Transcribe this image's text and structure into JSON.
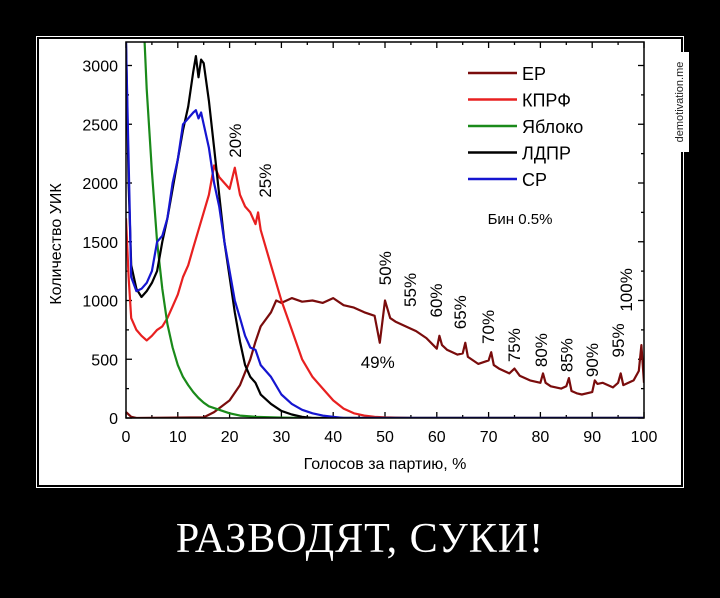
{
  "caption": "РАЗВОДЯТ, СУКИ!",
  "watermark": "demotivation.me",
  "chart_data": {
    "type": "line",
    "title": "",
    "xlabel": "Голосов за партию, %",
    "ylabel": "Количество УИК",
    "xlim": [
      0,
      100
    ],
    "ylim": [
      0,
      3200
    ],
    "xticks": [
      0,
      10,
      20,
      30,
      40,
      50,
      60,
      70,
      80,
      90,
      100
    ],
    "yticks": [
      0,
      500,
      1000,
      1500,
      2000,
      2500,
      3000
    ],
    "grid": false,
    "legend_position": "top-right",
    "bin_note": "Бин 0.5%",
    "series": [
      {
        "name": "ЕР",
        "color": "#7a0c0c",
        "points": [
          [
            0,
            50
          ],
          [
            1,
            10
          ],
          [
            2,
            0
          ],
          [
            15,
            5
          ],
          [
            17,
            50
          ],
          [
            20,
            150
          ],
          [
            22,
            280
          ],
          [
            24,
            500
          ],
          [
            25,
            650
          ],
          [
            26,
            780
          ],
          [
            28,
            900
          ],
          [
            29,
            1000
          ],
          [
            30,
            980
          ],
          [
            32,
            1020
          ],
          [
            34,
            990
          ],
          [
            36,
            1000
          ],
          [
            38,
            980
          ],
          [
            40,
            1020
          ],
          [
            42,
            960
          ],
          [
            44,
            940
          ],
          [
            46,
            900
          ],
          [
            48,
            870
          ],
          [
            49,
            640
          ],
          [
            50,
            1000
          ],
          [
            51,
            850
          ],
          [
            52,
            820
          ],
          [
            54,
            780
          ],
          [
            55,
            760
          ],
          [
            56,
            740
          ],
          [
            58,
            680
          ],
          [
            60,
            590
          ],
          [
            60.5,
            700
          ],
          [
            61,
            620
          ],
          [
            62,
            580
          ],
          [
            64,
            540
          ],
          [
            65,
            550
          ],
          [
            65.5,
            640
          ],
          [
            66,
            520
          ],
          [
            68,
            460
          ],
          [
            70,
            490
          ],
          [
            70.5,
            560
          ],
          [
            71,
            450
          ],
          [
            72,
            420
          ],
          [
            74,
            380
          ],
          [
            75,
            420
          ],
          [
            76,
            360
          ],
          [
            78,
            320
          ],
          [
            80,
            300
          ],
          [
            80.5,
            380
          ],
          [
            81,
            300
          ],
          [
            82,
            270
          ],
          [
            84,
            250
          ],
          [
            85,
            270
          ],
          [
            85.5,
            340
          ],
          [
            86,
            230
          ],
          [
            87,
            210
          ],
          [
            88,
            200
          ],
          [
            90,
            220
          ],
          [
            90.5,
            320
          ],
          [
            91,
            290
          ],
          [
            92,
            300
          ],
          [
            94,
            260
          ],
          [
            95,
            300
          ],
          [
            95.5,
            380
          ],
          [
            96,
            280
          ],
          [
            98,
            320
          ],
          [
            99,
            400
          ],
          [
            99.5,
            620
          ],
          [
            100,
            300
          ]
        ]
      },
      {
        "name": "КПРФ",
        "color": "#e82020",
        "points": [
          [
            0,
            1700
          ],
          [
            0.5,
            1200
          ],
          [
            1,
            850
          ],
          [
            2,
            750
          ],
          [
            3,
            700
          ],
          [
            4,
            660
          ],
          [
            5,
            700
          ],
          [
            6,
            750
          ],
          [
            7,
            780
          ],
          [
            8,
            850
          ],
          [
            9,
            950
          ],
          [
            10,
            1050
          ],
          [
            11,
            1200
          ],
          [
            12,
            1300
          ],
          [
            13,
            1450
          ],
          [
            14,
            1600
          ],
          [
            15,
            1750
          ],
          [
            16,
            1900
          ],
          [
            17,
            2150
          ],
          [
            18,
            2050
          ],
          [
            19,
            2000
          ],
          [
            20,
            1950
          ],
          [
            21,
            2130
          ],
          [
            22,
            1900
          ],
          [
            23,
            1800
          ],
          [
            24,
            1750
          ],
          [
            25,
            1650
          ],
          [
            25.5,
            1750
          ],
          [
            26,
            1600
          ],
          [
            28,
            1300
          ],
          [
            30,
            1000
          ],
          [
            32,
            750
          ],
          [
            34,
            500
          ],
          [
            36,
            350
          ],
          [
            38,
            250
          ],
          [
            40,
            150
          ],
          [
            42,
            80
          ],
          [
            44,
            40
          ],
          [
            46,
            20
          ],
          [
            48,
            10
          ],
          [
            50,
            5
          ],
          [
            55,
            0
          ],
          [
            100,
            0
          ]
        ]
      },
      {
        "name": "Яблоко",
        "color": "#1a8a1a",
        "points": [
          [
            3.6,
            3200
          ],
          [
            4,
            2800
          ],
          [
            5,
            2100
          ],
          [
            6,
            1500
          ],
          [
            7,
            1100
          ],
          [
            8,
            800
          ],
          [
            9,
            600
          ],
          [
            10,
            450
          ],
          [
            11,
            350
          ],
          [
            12,
            280
          ],
          [
            13,
            220
          ],
          [
            14,
            170
          ],
          [
            15,
            130
          ],
          [
            16,
            100
          ],
          [
            18,
            70
          ],
          [
            20,
            40
          ],
          [
            22,
            20
          ],
          [
            25,
            10
          ],
          [
            30,
            3
          ],
          [
            35,
            0
          ],
          [
            100,
            0
          ]
        ]
      },
      {
        "name": "ЛДПР",
        "color": "#000000",
        "points": [
          [
            0,
            3200
          ],
          [
            0.5,
            2000
          ],
          [
            1,
            1300
          ],
          [
            2,
            1100
          ],
          [
            3,
            1030
          ],
          [
            4,
            1080
          ],
          [
            5,
            1150
          ],
          [
            6,
            1250
          ],
          [
            7,
            1500
          ],
          [
            8,
            1700
          ],
          [
            9,
            1950
          ],
          [
            10,
            2200
          ],
          [
            11,
            2450
          ],
          [
            12,
            2650
          ],
          [
            13,
            2950
          ],
          [
            13.5,
            3080
          ],
          [
            14,
            2900
          ],
          [
            14.5,
            3050
          ],
          [
            15,
            3020
          ],
          [
            16,
            2700
          ],
          [
            17,
            2300
          ],
          [
            18,
            1900
          ],
          [
            19,
            1500
          ],
          [
            20,
            1200
          ],
          [
            21,
            900
          ],
          [
            22,
            650
          ],
          [
            23,
            450
          ],
          [
            24,
            350
          ],
          [
            25,
            300
          ],
          [
            26,
            200
          ],
          [
            28,
            120
          ],
          [
            30,
            60
          ],
          [
            32,
            30
          ],
          [
            34,
            10
          ],
          [
            36,
            0
          ],
          [
            100,
            0
          ]
        ]
      },
      {
        "name": "СР",
        "color": "#1515d0",
        "points": [
          [
            0,
            3200
          ],
          [
            0.5,
            2200
          ],
          [
            1,
            1200
          ],
          [
            2,
            1080
          ],
          [
            3,
            1100
          ],
          [
            4,
            1150
          ],
          [
            5,
            1250
          ],
          [
            6,
            1500
          ],
          [
            7,
            1550
          ],
          [
            8,
            1700
          ],
          [
            9,
            2000
          ],
          [
            10,
            2200
          ],
          [
            11,
            2500
          ],
          [
            12,
            2550
          ],
          [
            13,
            2600
          ],
          [
            13.5,
            2620
          ],
          [
            14,
            2550
          ],
          [
            14.5,
            2600
          ],
          [
            15,
            2500
          ],
          [
            16,
            2300
          ],
          [
            17,
            2000
          ],
          [
            18,
            1800
          ],
          [
            19,
            1500
          ],
          [
            20,
            1250
          ],
          [
            21,
            1000
          ],
          [
            22,
            850
          ],
          [
            23,
            700
          ],
          [
            24,
            600
          ],
          [
            25,
            580
          ],
          [
            26,
            450
          ],
          [
            28,
            350
          ],
          [
            30,
            200
          ],
          [
            32,
            120
          ],
          [
            34,
            70
          ],
          [
            36,
            40
          ],
          [
            38,
            20
          ],
          [
            40,
            10
          ],
          [
            42,
            0
          ],
          [
            100,
            0
          ]
        ]
      }
    ],
    "annotations": [
      {
        "text": "20%",
        "x": 21,
        "y": 2360,
        "rotated": true
      },
      {
        "text": "25%",
        "x": 26.8,
        "y": 2020,
        "rotated": true
      },
      {
        "text": "50%",
        "x": 50,
        "y": 1275,
        "rotated": true
      },
      {
        "text": "55%",
        "x": 54.8,
        "y": 1090,
        "rotated": true
      },
      {
        "text": "60%",
        "x": 59.8,
        "y": 1000,
        "rotated": true
      },
      {
        "text": "65%",
        "x": 64.5,
        "y": 900,
        "rotated": true
      },
      {
        "text": "70%",
        "x": 69.9,
        "y": 775,
        "rotated": true
      },
      {
        "text": "75%",
        "x": 74.9,
        "y": 620,
        "rotated": true
      },
      {
        "text": "80%",
        "x": 80.1,
        "y": 578,
        "rotated": true
      },
      {
        "text": "85%",
        "x": 85,
        "y": 535,
        "rotated": true
      },
      {
        "text": "90%",
        "x": 90,
        "y": 493,
        "rotated": true
      },
      {
        "text": "95%",
        "x": 95,
        "y": 660,
        "rotated": true
      },
      {
        "text": "100%",
        "x": 96.5,
        "y": 1090,
        "rotated": true
      },
      {
        "text": "49%",
        "x": 48.6,
        "y": 476,
        "rotated": false
      }
    ]
  }
}
